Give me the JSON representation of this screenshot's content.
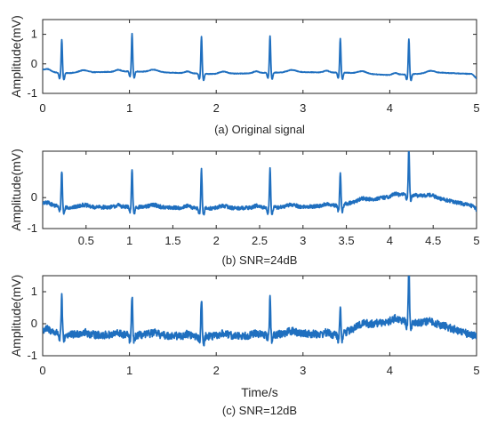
{
  "chart_data": [
    {
      "type": "line",
      "caption": "(a) Original signal",
      "ylabel": "Amplitude(mV)",
      "xlabel": "",
      "xlim": [
        0,
        5
      ],
      "ylim": [
        -1,
        1.5
      ],
      "xticks": [
        "0",
        "1",
        "2",
        "3",
        "4",
        "5"
      ],
      "yticks": [
        "-1",
        "0",
        "1"
      ],
      "line_color": "#1f6fbf",
      "baseline": [
        [
          0,
          -0.2
        ],
        [
          0.2,
          -0.32
        ],
        [
          1.0,
          -0.25
        ],
        [
          2.0,
          -0.35
        ],
        [
          2.6,
          -0.3
        ],
        [
          3.0,
          -0.28
        ],
        [
          3.5,
          -0.3
        ],
        [
          4.0,
          -0.38
        ],
        [
          4.6,
          -0.3
        ],
        [
          5.0,
          -0.35
        ]
      ],
      "beats_time": [
        0.22,
        1.03,
        1.83,
        2.62,
        3.43,
        4.22
      ],
      "r_peak": [
        0.85,
        0.97,
        0.95,
        0.94,
        0.86,
        0.9
      ],
      "noise_level": 0.01,
      "end_drop": -0.5
    },
    {
      "type": "line",
      "caption": "(b) SNR=24dB",
      "ylabel": "Amplitude(mV)",
      "xlabel": "",
      "xlim": [
        0,
        5
      ],
      "ylim": [
        -1,
        1.5
      ],
      "xticks": [
        "0.5",
        "1",
        "1.5",
        "2",
        "2.5",
        "3",
        "3.5",
        "4",
        "4.5",
        "5"
      ],
      "yticks": [
        "-1",
        "0"
      ],
      "line_color": "#1f6fbf",
      "baseline": [
        [
          0,
          -0.2
        ],
        [
          0.3,
          -0.32
        ],
        [
          1.0,
          -0.3
        ],
        [
          2.0,
          -0.35
        ],
        [
          3.0,
          -0.3
        ],
        [
          3.4,
          -0.25
        ],
        [
          3.7,
          -0.1
        ],
        [
          4.2,
          0.12
        ],
        [
          4.6,
          -0.05
        ],
        [
          5.0,
          -0.3
        ]
      ],
      "beats_time": [
        0.22,
        1.03,
        1.83,
        2.62,
        3.43,
        4.22
      ],
      "r_peak": [
        0.87,
        0.95,
        0.93,
        0.95,
        0.73,
        1.17
      ],
      "noise_level": 0.06,
      "end_drop": -0.38
    },
    {
      "type": "line",
      "caption": "(c) SNR=12dB",
      "ylabel": "Amplitude(mV)",
      "xlabel": "Time/s",
      "xlim": [
        0,
        5
      ],
      "ylim": [
        -1,
        1.5
      ],
      "xticks": [
        "0",
        "1",
        "2",
        "3",
        "4",
        "5"
      ],
      "yticks": [
        "-1",
        "0",
        "1"
      ],
      "line_color": "#1f6fbf",
      "baseline": [
        [
          0,
          -0.2
        ],
        [
          0.3,
          -0.35
        ],
        [
          1.0,
          -0.35
        ],
        [
          2.0,
          -0.4
        ],
        [
          3.0,
          -0.3
        ],
        [
          3.4,
          -0.35
        ],
        [
          3.7,
          -0.05
        ],
        [
          4.1,
          0.12
        ],
        [
          4.6,
          -0.05
        ],
        [
          5.0,
          -0.4
        ]
      ],
      "beats_time": [
        0.22,
        1.03,
        1.83,
        2.62,
        3.43,
        4.22
      ],
      "r_peak": [
        0.83,
        0.92,
        0.9,
        0.85,
        0.47,
        1.42
      ],
      "noise_level": 0.12,
      "end_drop": -0.35
    }
  ]
}
